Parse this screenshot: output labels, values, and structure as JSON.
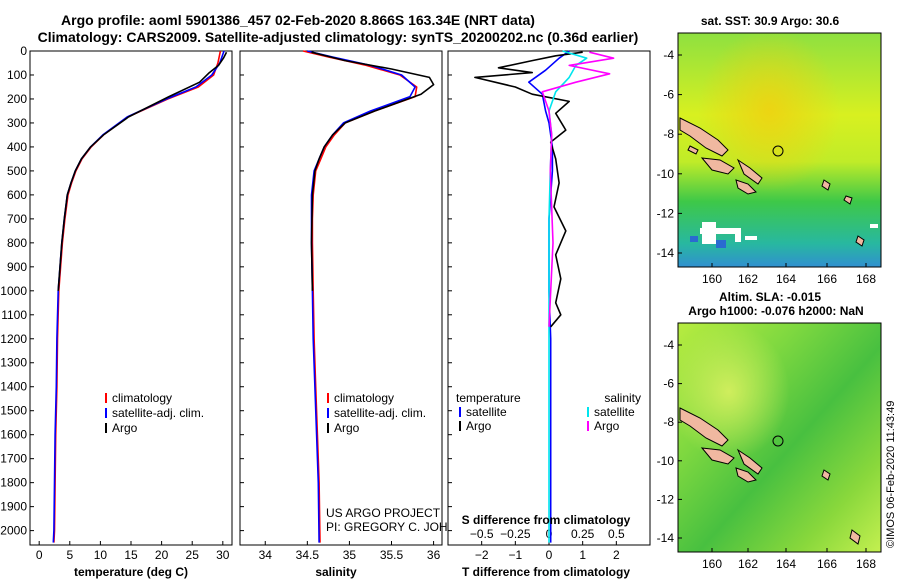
{
  "title": {
    "line1": "Argo profile: aoml 5901386_457 02-Feb-2020 8.866S 163.34E (NRT data)",
    "line2": "Climatology: CARS2009. Satellite-adjusted climatology: synTS_20200202.nc (0.36d earlier)"
  },
  "credit": {
    "line1": "US ARGO PROJECT",
    "line2": "PI: GREGORY C. JOHNSON"
  },
  "footer_stamp": "©IMOS 06-Feb-2020 11:43:49",
  "colors": {
    "climatology": "#ff0000",
    "satellite": "#0000ff",
    "argo": "#000000",
    "sal_satellite": "#00e5ee",
    "sal_argo": "#ff00ff",
    "land": "#f0b8a0"
  },
  "chart_data": [
    {
      "type": "line",
      "id": "temperature_profile",
      "xlabel": "temperature (deg C)",
      "ylabel": "",
      "xlim": [
        -1.5,
        31.5
      ],
      "ylim": [
        2060,
        0
      ],
      "xticks": [
        0,
        5,
        10,
        15,
        20,
        25,
        30
      ],
      "yticks": [
        0,
        100,
        200,
        300,
        400,
        500,
        600,
        700,
        800,
        900,
        1000,
        1100,
        1200,
        1300,
        1400,
        1500,
        1600,
        1700,
        1800,
        1900,
        2000
      ],
      "series": [
        {
          "name": "climatology",
          "color": "#ff0000",
          "x": [
            29.6,
            29.2,
            28.5,
            26,
            21,
            14.5,
            10.5,
            8.5,
            7,
            6,
            5.3,
            4.7,
            4.2,
            3.8,
            3.5,
            3.2,
            3,
            2.9,
            2.8,
            2.7,
            2.6,
            2.5,
            2.4
          ],
          "y": [
            0,
            50,
            100,
            150,
            200,
            275,
            350,
            400,
            450,
            500,
            550,
            600,
            700,
            800,
            900,
            1000,
            1200,
            1400,
            1500,
            1600,
            1800,
            2000,
            2050
          ]
        },
        {
          "name": "satellite-adj. clim.",
          "color": "#0000ff",
          "x": [
            30.2,
            29.5,
            28.2,
            25.6,
            20.8,
            14.4,
            10.4,
            8.4,
            6.9,
            5.9,
            5.2,
            4.6,
            4.1,
            3.7,
            3.4,
            3.1,
            2.9,
            2.8,
            2.7,
            2.6,
            2.5,
            2.4,
            2.3
          ],
          "y": [
            0,
            50,
            100,
            150,
            200,
            275,
            350,
            400,
            450,
            500,
            550,
            600,
            700,
            800,
            900,
            1000,
            1200,
            1400,
            1500,
            1600,
            1800,
            2000,
            2050
          ]
        },
        {
          "name": "Argo",
          "color": "#000000",
          "x": [
            30.6,
            30.1,
            29.3,
            27.8,
            26.2,
            21.2,
            14.6,
            10.5,
            8.4,
            6.9,
            5.9,
            5.2,
            4.6,
            4.1,
            3.7,
            3.4,
            3.1
          ],
          "y": [
            5,
            30,
            60,
            90,
            130,
            190,
            275,
            350,
            400,
            450,
            500,
            550,
            600,
            700,
            800,
            900,
            1000
          ]
        }
      ],
      "legend": [
        "climatology",
        "satellite-adj. clim.",
        "Argo"
      ],
      "legend_position": "bottom-center"
    },
    {
      "type": "line",
      "id": "salinity_profile",
      "xlabel": "salinity",
      "ylabel": "",
      "xlim": [
        33.7,
        36.1
      ],
      "ylim": [
        2060,
        0
      ],
      "xticks": [
        34,
        34.5,
        35,
        35.5,
        36
      ],
      "xtick_labels": [
        "34",
        "34.5",
        "35",
        "35.5",
        "36"
      ],
      "series": [
        {
          "name": "climatology",
          "color": "#ff0000",
          "x": [
            34.45,
            34.75,
            35.2,
            35.6,
            35.8,
            35.78,
            35.3,
            34.95,
            34.82,
            34.72,
            34.66,
            34.6,
            34.57,
            34.56,
            34.56,
            34.57,
            34.58,
            34.6,
            34.62,
            34.64,
            34.65
          ],
          "y": [
            0,
            25,
            60,
            100,
            150,
            190,
            250,
            300,
            350,
            400,
            450,
            500,
            600,
            700,
            800,
            1000,
            1200,
            1400,
            1600,
            1800,
            2050
          ]
        },
        {
          "name": "satellite-adj. clim.",
          "color": "#0000ff",
          "x": [
            34.5,
            34.8,
            35.25,
            35.62,
            35.78,
            35.72,
            35.25,
            34.93,
            34.8,
            34.7,
            34.64,
            34.58,
            34.55,
            34.55,
            34.55,
            34.56,
            34.57,
            34.59,
            34.61,
            34.63,
            34.64
          ],
          "y": [
            0,
            25,
            60,
            100,
            150,
            190,
            250,
            300,
            350,
            400,
            450,
            500,
            600,
            700,
            800,
            1000,
            1200,
            1400,
            1600,
            1800,
            2050
          ]
        },
        {
          "name": "Argo",
          "color": "#000000",
          "x": [
            34.55,
            34.95,
            35.5,
            35.95,
            36.0,
            35.85,
            35.3,
            34.95,
            34.8,
            34.7,
            34.64,
            34.59,
            34.56,
            34.55,
            34.56
          ],
          "y": [
            5,
            40,
            75,
            110,
            140,
            180,
            250,
            300,
            350,
            400,
            450,
            500,
            600,
            800,
            1000
          ]
        }
      ],
      "legend": [
        "climatology",
        "satellite-adj. clim.",
        "Argo"
      ],
      "legend_position": "bottom-center"
    },
    {
      "type": "line",
      "id": "difference_profile",
      "xlabel": "T difference from climatology",
      "xlabel_top": "S difference from climatology",
      "xlim": [
        -3,
        3
      ],
      "ylim": [
        2060,
        0
      ],
      "xticks": [
        -2,
        -1,
        0,
        1,
        2
      ],
      "xtick_labels": [
        "−2",
        "−1",
        "0",
        "1",
        "2"
      ],
      "top_ticks": [
        -0.5,
        -0.25,
        0,
        0.25,
        0.5
      ],
      "top_tick_labels": [
        "−0.5",
        "−0.25",
        "0",
        "0.25",
        "0.5"
      ],
      "series": [
        {
          "name": "T satellite",
          "color": "#0000ff",
          "x": [
            0.6,
            0.3,
            -0.1,
            -0.6,
            -0.2,
            -0.1,
            0,
            0.05,
            0.1,
            0.1,
            0.05,
            0,
            0,
            0,
            0.05,
            0.05,
            0.05,
            0.05,
            0.05,
            0.05
          ],
          "y": [
            0,
            30,
            80,
            130,
            180,
            250,
            300,
            350,
            400,
            500,
            600,
            700,
            800,
            1000,
            1200,
            1400,
            1600,
            1800,
            2000,
            2050
          ]
        },
        {
          "name": "T Argo",
          "color": "#000000",
          "x": [
            1.0,
            0.2,
            -0.5,
            -1.5,
            -0.5,
            -2.2,
            -1.0,
            -0.5,
            0.6,
            0.2,
            0.5,
            0.05,
            0.2,
            0.3,
            0.15,
            0.5,
            0.2,
            0.35,
            0.2,
            0.35,
            0.05
          ],
          "y": [
            5,
            20,
            40,
            70,
            90,
            110,
            150,
            180,
            210,
            260,
            330,
            380,
            450,
            550,
            650,
            750,
            850,
            950,
            1050,
            1100,
            1150
          ]
        },
        {
          "name": "S satellite",
          "color": "#00e5ee",
          "x": [
            0.1,
            0.28,
            0.2,
            0.15,
            0.05,
            0.0,
            0.02,
            0.01,
            0.0,
            0.0,
            0.0,
            0.0,
            0.0,
            0.0,
            0.0
          ],
          "y": [
            0,
            30,
            60,
            110,
            170,
            250,
            350,
            500,
            700,
            900,
            1200,
            1500,
            1800,
            2000,
            2050
          ]
        },
        {
          "name": "S Argo",
          "color": "#ff00ff",
          "x": [
            0.3,
            0.48,
            0.15,
            0.45,
            0.2,
            -0.05,
            0.0,
            0.02,
            0.01,
            0.03,
            0.0
          ],
          "y": [
            5,
            30,
            60,
            95,
            130,
            170,
            250,
            350,
            500,
            800,
            1150
          ]
        }
      ],
      "legend_left_header": "temperature",
      "legend_right_header": "salinity",
      "legend_left": [
        "satellite",
        "Argo"
      ],
      "legend_right": [
        "satellite",
        "Argo"
      ],
      "legend_position": "bottom-center"
    }
  ],
  "maps": [
    {
      "id": "sst_map",
      "title": "sat. SST: 30.9 Argo: 30.6",
      "title2": "",
      "xticks": [
        "160",
        "162",
        "164",
        "166",
        "168"
      ],
      "yticks": [
        "-4",
        "-6",
        "-8",
        "-10",
        "-12",
        "-14"
      ],
      "marker": "Argo float position"
    },
    {
      "id": "sla_map",
      "title": "Altim. SLA: -0.015",
      "title2": "Argo h1000: -0.076 h2000: NaN",
      "xticks": [
        "160",
        "162",
        "164",
        "166",
        "168"
      ],
      "yticks": [
        "-4",
        "-6",
        "-8",
        "-10",
        "-12",
        "-14"
      ],
      "marker": "Argo float position"
    }
  ]
}
